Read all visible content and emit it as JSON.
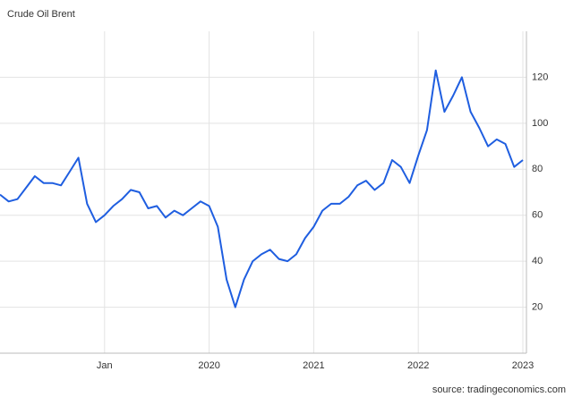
{
  "chart_data": {
    "type": "line",
    "title": "Crude Oil Brent",
    "source": "source: tradingeconomics.com",
    "x": [
      "2018-01",
      "2018-02",
      "2018-03",
      "2018-04",
      "2018-05",
      "2018-06",
      "2018-07",
      "2018-08",
      "2018-09",
      "2018-10",
      "2018-11",
      "2018-12",
      "2019-01",
      "2019-02",
      "2019-03",
      "2019-04",
      "2019-05",
      "2019-06",
      "2019-07",
      "2019-08",
      "2019-09",
      "2019-10",
      "2019-11",
      "2019-12",
      "2020-01",
      "2020-02",
      "2020-03",
      "2020-04",
      "2020-05",
      "2020-06",
      "2020-07",
      "2020-08",
      "2020-09",
      "2020-10",
      "2020-11",
      "2020-12",
      "2021-01",
      "2021-02",
      "2021-03",
      "2021-04",
      "2021-05",
      "2021-06",
      "2021-07",
      "2021-08",
      "2021-09",
      "2021-10",
      "2021-11",
      "2021-12",
      "2022-01",
      "2022-02",
      "2022-03",
      "2022-04",
      "2022-05",
      "2022-06",
      "2022-07",
      "2022-08",
      "2022-09",
      "2022-10",
      "2022-11",
      "2022-12",
      "2023-01"
    ],
    "series": [
      {
        "name": "Crude Oil Brent",
        "color": "#1f5ee0",
        "values": [
          69,
          66,
          67,
          72,
          77,
          74,
          74,
          73,
          79,
          85,
          65,
          57,
          60,
          64,
          67,
          71,
          70,
          63,
          64,
          59,
          62,
          60,
          63,
          66,
          64,
          55,
          32,
          20,
          32,
          40,
          43,
          45,
          41,
          40,
          43,
          50,
          55,
          62,
          65,
          65,
          68,
          73,
          75,
          71,
          74,
          84,
          81,
          74,
          86,
          97,
          123,
          105,
          112,
          120,
          105,
          98,
          90,
          93,
          91,
          81,
          84
        ]
      }
    ],
    "xlim": [
      "2018-01",
      "2023-01"
    ],
    "xticks": [
      {
        "value": "2019-01",
        "label": "Jan"
      },
      {
        "value": "2020-01",
        "label": "2020"
      },
      {
        "value": "2021-01",
        "label": "2021"
      },
      {
        "value": "2022-01",
        "label": "2022"
      },
      {
        "value": "2023-01",
        "label": "2023"
      }
    ],
    "ylim": [
      0,
      140
    ],
    "yticks": [
      20,
      40,
      60,
      80,
      100,
      120
    ],
    "grid": true
  }
}
